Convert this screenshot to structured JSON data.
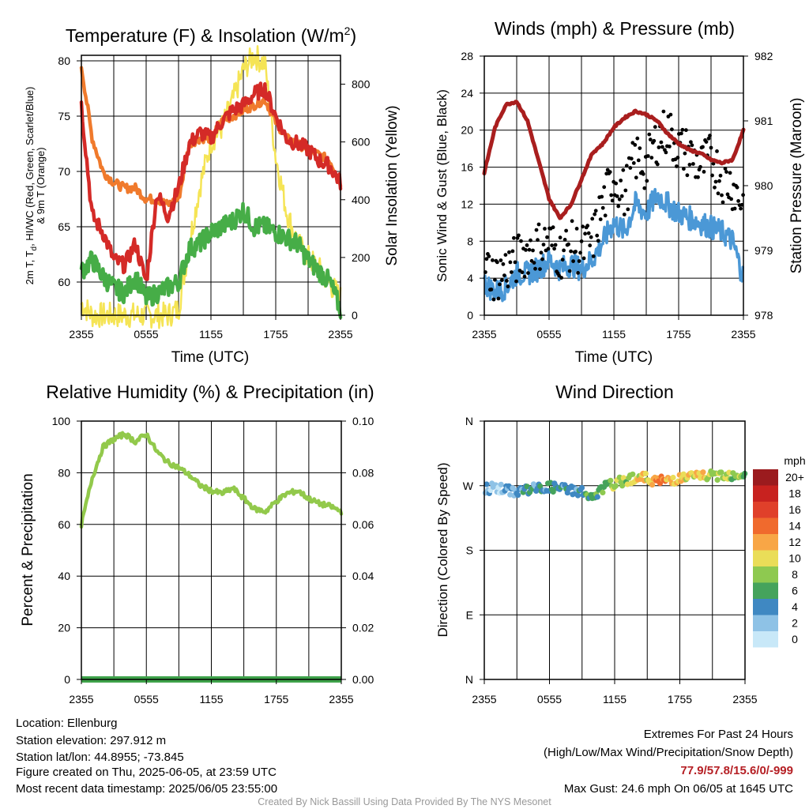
{
  "colors": {
    "red": "#d42a27",
    "orange": "#f07a2c",
    "green": "#46ad47",
    "yellow": "#f5e455",
    "blue": "#4b98d6",
    "black": "#000000",
    "maroon": "#a91e1e",
    "rh": "#92c94b",
    "precip": "#3ea24a",
    "extremes": "#b51f24",
    "credit": "#999999"
  },
  "x_ticks": [
    "2355",
    "0555",
    "1155",
    "1755",
    "2355"
  ],
  "panels": {
    "temp": {
      "title": "Temperature (F) & Insolation (W/m",
      "title_sup": "2",
      "title_close": ")",
      "ylabel_line1": "2m T, T",
      "ylabel_sub": "d",
      "ylabel_rest": ", HI/WC (Red, Green, Scarlet/Blue)",
      "ylabel_line2": "& 9m T (Orange)",
      "ylabel_right": "Solar Insolation (Yellow)",
      "xlabel": "Time (UTC)",
      "yticks_left": [
        "60",
        "65",
        "70",
        "75",
        "80"
      ],
      "yticks_right": [
        "0",
        "200",
        "400",
        "600",
        "800"
      ]
    },
    "winds": {
      "title": "Winds (mph) & Pressure (mb)",
      "ylabel_left": "Sonic Wind & Gust (Blue, Black)",
      "ylabel_right": "Station Pressure (Maroon)",
      "xlabel": "Time (UTC)",
      "yticks_left": [
        "0",
        "4",
        "8",
        "12",
        "16",
        "20",
        "24",
        "28"
      ],
      "yticks_right": [
        "978",
        "979",
        "980",
        "981",
        "982"
      ]
    },
    "rh": {
      "title": "Relative Humidity (%) & Precipitation (in)",
      "ylabel_left": "Percent & Precipitation",
      "yticks_left": [
        "0",
        "20",
        "40",
        "60",
        "80",
        "100"
      ],
      "yticks_right": [
        "0.00",
        "0.02",
        "0.04",
        "0.06",
        "0.08",
        "0.10"
      ]
    },
    "wdir": {
      "title": "Wind Direction",
      "ylabel_left": "Direction (Colored By Speed)",
      "yticks_left": [
        "N",
        "E",
        "S",
        "W",
        "N"
      ],
      "legend_title": "mph",
      "legend": [
        {
          "label": "20+",
          "color": "#9b1b1e"
        },
        {
          "label": "18",
          "color": "#c8221f"
        },
        {
          "label": "16",
          "color": "#e0402a"
        },
        {
          "label": "14",
          "color": "#f06a2d"
        },
        {
          "label": "12",
          "color": "#f8a646"
        },
        {
          "label": "10",
          "color": "#eadd58"
        },
        {
          "label": "8",
          "color": "#8ec950"
        },
        {
          "label": "6",
          "color": "#45a35c"
        },
        {
          "label": "4",
          "color": "#3f88c2"
        },
        {
          "label": "2",
          "color": "#8ec2e6"
        },
        {
          "label": "0",
          "color": "#c8e8f8"
        }
      ]
    }
  },
  "chart_data": [
    {
      "type": "line",
      "title": "Temperature (F) & Insolation (W/m2)",
      "xlabel": "Time (UTC)",
      "ylabel": "2m T, Td, HI/WC (Red, Green, Scarlet/Blue) & 9m T (Orange)",
      "ylabel_right": "Solar Insolation (Yellow)",
      "x_hours": [
        0,
        1,
        2,
        3,
        4,
        5,
        6,
        7,
        8,
        9,
        10,
        11,
        12,
        13,
        14,
        15,
        16,
        17,
        18,
        19,
        20,
        21,
        22,
        23,
        24
      ],
      "ylim": [
        57,
        80.5
      ],
      "ylim_right": [
        0,
        900
      ],
      "series": [
        {
          "name": "2m T",
          "axis": "left",
          "color": "#d42a27",
          "values": [
            76,
            66,
            64.5,
            62,
            61.5,
            63.5,
            60,
            68,
            66,
            68.5,
            72.5,
            73.5,
            73,
            74.5,
            75.5,
            76,
            77,
            77.5,
            75,
            73,
            72.5,
            72,
            71,
            70.5,
            69
          ]
        },
        {
          "name": "9m T",
          "axis": "left",
          "color": "#f07a2c",
          "values": [
            79.5,
            73,
            70,
            69,
            68.5,
            68.5,
            67.5,
            67.5,
            67,
            67.5,
            72.5,
            73,
            73,
            74.5,
            75,
            75.5,
            76,
            76.5,
            74.5,
            73,
            72.5,
            72,
            71.5,
            71,
            69
          ]
        },
        {
          "name": "Td",
          "axis": "left",
          "color": "#46ad47",
          "values": [
            61,
            62,
            60.5,
            59.5,
            59,
            60.5,
            58.5,
            59,
            59.5,
            60,
            63,
            63.5,
            64.5,
            65,
            65.5,
            66.5,
            65,
            65,
            64.5,
            64,
            63.5,
            62,
            61,
            60,
            57.5
          ]
        },
        {
          "name": "Solar Insolation",
          "axis": "right",
          "color": "#f5e455",
          "values": [
            40,
            0,
            0,
            0,
            0,
            0,
            0,
            0,
            0,
            20,
            250,
            450,
            600,
            650,
            740,
            850,
            900,
            870,
            550,
            360,
            250,
            200,
            160,
            110,
            60
          ]
        }
      ]
    },
    {
      "type": "line",
      "title": "Winds (mph) & Pressure (mb)",
      "xlabel": "Time (UTC)",
      "ylabel": "Sonic Wind & Gust (Blue, Black)",
      "ylabel_right": "Station Pressure (Maroon)",
      "x_hours": [
        0,
        1,
        2,
        3,
        4,
        5,
        6,
        7,
        8,
        9,
        10,
        11,
        12,
        13,
        14,
        15,
        16,
        17,
        18,
        19,
        20,
        21,
        22,
        23,
        24
      ],
      "ylim": [
        0,
        28
      ],
      "ylim_right": [
        978,
        982
      ],
      "series": [
        {
          "name": "Sonic Wind",
          "axis": "left",
          "color": "#4b98d6",
          "values": [
            3.5,
            2.5,
            3,
            4.5,
            4.5,
            5,
            6,
            5,
            5.5,
            5,
            6,
            8,
            10,
            9,
            12,
            11,
            13,
            12,
            11,
            10.5,
            10,
            9.5,
            9,
            8,
            4
          ]
        },
        {
          "name": "Gust",
          "axis": "left",
          "color": "#000000",
          "values": [
            5.5,
            4,
            5,
            6,
            7,
            7.5,
            8,
            6.5,
            7.5,
            7,
            8,
            12,
            15,
            13,
            17,
            16,
            19,
            20,
            18,
            17.5,
            16,
            17,
            15,
            14,
            12
          ]
        },
        {
          "name": "Station Pressure",
          "axis": "right",
          "color": "#a91e1e",
          "values": [
            980.2,
            980.9,
            981.25,
            981.3,
            981.0,
            980.4,
            979.8,
            979.5,
            979.7,
            980.1,
            980.5,
            980.65,
            980.9,
            981.05,
            981.15,
            981.1,
            981.0,
            980.8,
            980.65,
            980.55,
            980.5,
            980.4,
            980.35,
            980.4,
            980.85
          ]
        }
      ]
    },
    {
      "type": "line",
      "title": "Relative Humidity (%) & Precipitation (in)",
      "ylabel": "Percent & Precipitation",
      "x_hours": [
        0,
        1,
        2,
        3,
        4,
        5,
        6,
        7,
        8,
        9,
        10,
        11,
        12,
        13,
        14,
        15,
        16,
        17,
        18,
        19,
        20,
        21,
        22,
        23,
        24
      ],
      "ylim": [
        0,
        100
      ],
      "ylim_right": [
        0,
        0.1
      ],
      "series": [
        {
          "name": "Relative Humidity",
          "axis": "left",
          "color": "#92c94b",
          "values": [
            60,
            78,
            90,
            93,
            95,
            92,
            95,
            88,
            84,
            82,
            79,
            75,
            73,
            72,
            74,
            70,
            66,
            65,
            69,
            72,
            73,
            70,
            68,
            67,
            65
          ]
        },
        {
          "name": "Precipitation",
          "axis": "right",
          "color": "#3ea24a",
          "values": [
            0,
            0,
            0,
            0,
            0,
            0,
            0,
            0,
            0,
            0,
            0,
            0,
            0,
            0,
            0,
            0,
            0,
            0,
            0,
            0,
            0,
            0,
            0,
            0,
            0
          ]
        }
      ]
    },
    {
      "type": "scatter",
      "title": "Wind Direction",
      "ylabel": "Direction (Colored By Speed)",
      "y_categories": [
        "N",
        "E",
        "S",
        "W",
        "N"
      ],
      "ylim": [
        0,
        360
      ],
      "x_hours": [
        0,
        1,
        2,
        3,
        4,
        5,
        6,
        7,
        8,
        9,
        10,
        11,
        12,
        13,
        14,
        15,
        16,
        17,
        18,
        19,
        20,
        21,
        22,
        23,
        24
      ],
      "series": [
        {
          "name": "Direction",
          "values": [
            265,
            268,
            263,
            262,
            265,
            266,
            268,
            266,
            264,
            262,
            250,
            268,
            272,
            278,
            282,
            280,
            276,
            278,
            280,
            282,
            284,
            283,
            286,
            285,
            286
          ],
          "speeds": [
            2,
            2,
            3,
            3,
            4,
            4,
            5,
            4,
            4,
            5,
            6,
            7,
            9,
            8,
            11,
            10,
            14,
            12,
            11,
            10,
            10,
            9,
            9,
            8,
            7
          ]
        }
      ]
    }
  ],
  "footer": {
    "location": "Location: Ellenburg",
    "elevation": "Station elevation: 297.912 m",
    "latlon": "Station lat/lon: 44.8955; -73.845",
    "created": "Figure created on Thu, 2025-06-05, at 23:59 UTC",
    "recent": "Most recent data timestamp: 2025/06/05 23:55:00",
    "extremes_title": "Extremes For Past 24 Hours",
    "extremes_sub": "(High/Low/Max Wind/Precipitation/Snow Depth)",
    "extremes_values": "77.9/57.8/15.6/0/-999",
    "max_gust": "Max Gust: 24.6 mph On 06/05 at 1645 UTC",
    "credit": "Created By Nick Bassill Using Data Provided By The NYS Mesonet"
  }
}
